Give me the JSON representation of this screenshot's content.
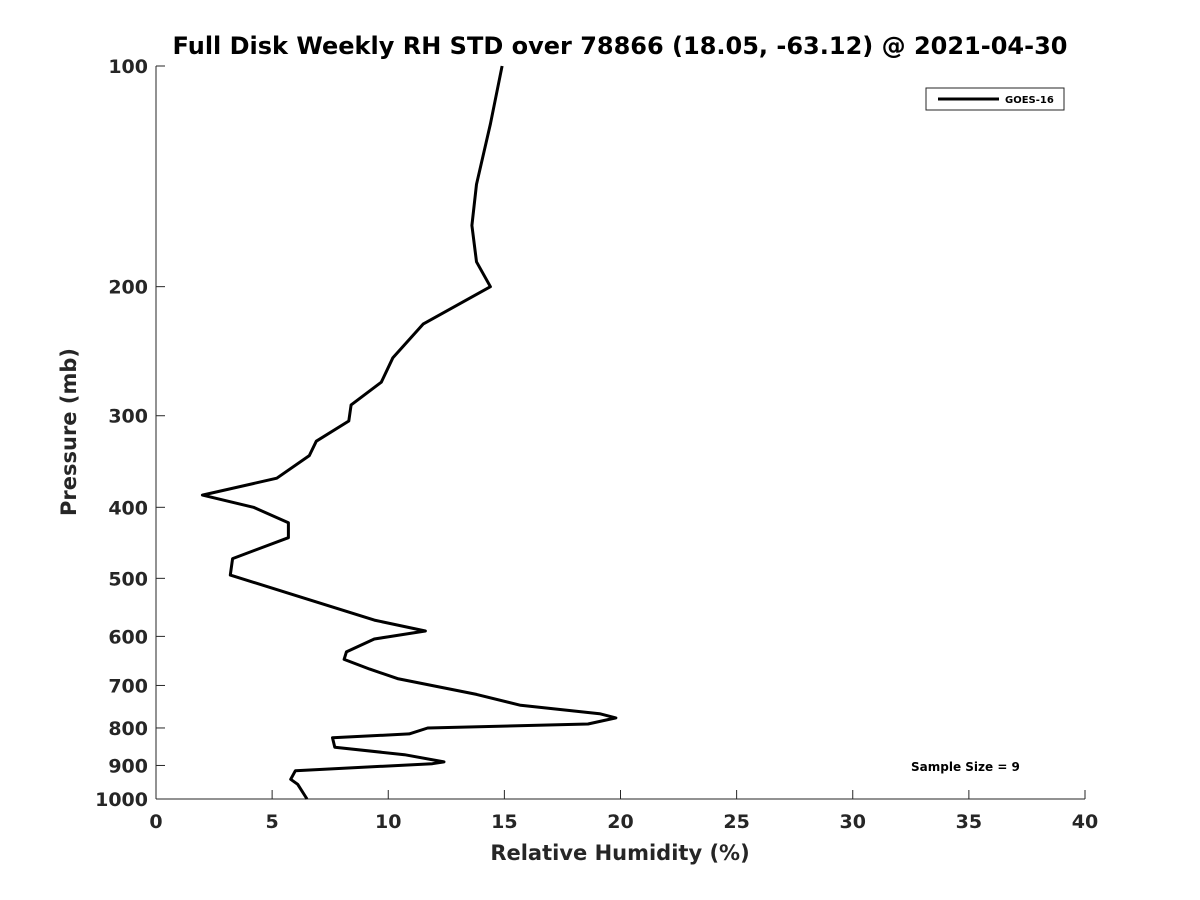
{
  "chart_data": {
    "type": "line",
    "title": "Full Disk Weekly RH STD over 78866 (18.05, -63.12) @ 2021-04-30",
    "xlabel": "Relative Humidity (%)",
    "ylabel": "Pressure (mb)",
    "xlim": [
      0,
      40
    ],
    "ylim": [
      100,
      1000
    ],
    "y_scale": "log",
    "y_reversed": true,
    "x_ticks": [
      0,
      5,
      10,
      15,
      20,
      25,
      30,
      35,
      40
    ],
    "y_ticks": [
      100,
      200,
      300,
      400,
      500,
      600,
      700,
      800,
      900,
      1000
    ],
    "grid": false,
    "legend_position": "top-right",
    "series": [
      {
        "name": "GOES-16",
        "color": "#000000",
        "x": [
          14.9,
          14.4,
          13.8,
          13.6,
          13.8,
          14.4,
          11.5,
          10.2,
          9.7,
          8.4,
          8.3,
          6.9,
          6.6,
          5.2,
          2.0,
          4.2,
          5.7,
          5.7,
          3.3,
          3.2,
          5.8,
          9.4,
          11.6,
          9.4,
          8.2,
          8.1,
          9.2,
          10.4,
          13.8,
          15.7,
          19.1,
          19.8,
          18.6,
          11.7,
          10.9,
          7.6,
          7.7,
          10.7,
          12.4,
          11.9,
          6.0,
          5.8,
          6.1,
          6.5
        ],
        "y": [
          100,
          120,
          145,
          165,
          185,
          200,
          225,
          250,
          270,
          290,
          305,
          325,
          340,
          365,
          385,
          400,
          420,
          440,
          470,
          495,
          525,
          570,
          590,
          605,
          630,
          645,
          665,
          685,
          720,
          745,
          765,
          775,
          790,
          800,
          815,
          825,
          850,
          870,
          890,
          895,
          915,
          940,
          955,
          1000
        ]
      }
    ],
    "annotations": [
      "Sample Size = 9"
    ]
  }
}
